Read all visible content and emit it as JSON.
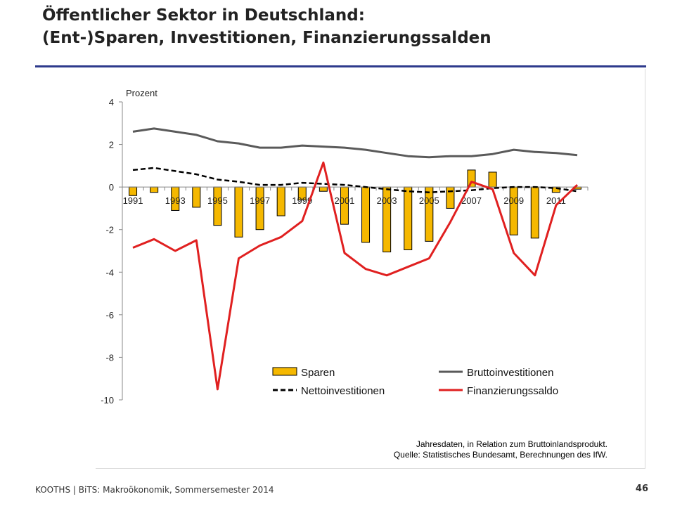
{
  "slide": {
    "title_line1": "Öffentlicher Sektor in Deutschland:",
    "title_line2": "(Ent-)Sparen, Investitionen, Finanzierungssalden",
    "footer_left": "KOOTHS | BiTS: Makroökonomik, Sommersemester 2014",
    "page_number": "46",
    "accent_color": "#2e3a8c"
  },
  "chart_data": {
    "type": "bar",
    "title": "",
    "ylabel": "Prozent",
    "ylim": [
      -10,
      4
    ],
    "yticks": [
      4,
      2,
      0,
      -2,
      -4,
      -6,
      -8,
      -10
    ],
    "grid": false,
    "legend_position": "bottom-right",
    "x": [
      1991,
      1992,
      1993,
      1994,
      1995,
      1996,
      1997,
      1998,
      1999,
      2000,
      2001,
      2002,
      2003,
      2004,
      2005,
      2006,
      2007,
      2008,
      2009,
      2010,
      2011,
      2012
    ],
    "x_tick_labels": [
      "1991",
      "1993",
      "1995",
      "1997",
      "1999",
      "2001",
      "2003",
      "2005",
      "2007",
      "2009",
      "2011"
    ],
    "series": [
      {
        "name": "Sparen",
        "style": "bar",
        "color": "#f5b800",
        "values": [
          -0.4,
          -0.25,
          -1.1,
          -0.95,
          -1.8,
          -2.35,
          -2.0,
          -1.35,
          -0.6,
          -0.2,
          -1.75,
          -2.6,
          -3.05,
          -2.95,
          -2.55,
          -1.0,
          0.8,
          0.7,
          -2.25,
          -2.4,
          -0.25,
          -0.1
        ]
      },
      {
        "name": "Bruttoinvestitionen",
        "style": "line",
        "color": "#5a5a5a",
        "values": [
          2.6,
          2.75,
          2.6,
          2.45,
          2.15,
          2.05,
          1.85,
          1.85,
          1.95,
          1.9,
          1.85,
          1.75,
          1.6,
          1.45,
          1.4,
          1.45,
          1.45,
          1.55,
          1.75,
          1.65,
          1.6,
          1.5
        ]
      },
      {
        "name": "Nettoinvestitionen",
        "style": "dashed",
        "color": "#000000",
        "values": [
          0.8,
          0.9,
          0.75,
          0.6,
          0.35,
          0.25,
          0.1,
          0.1,
          0.2,
          0.15,
          0.1,
          0.0,
          -0.1,
          -0.2,
          -0.25,
          -0.2,
          -0.15,
          -0.05,
          0.0,
          0.0,
          -0.05,
          -0.2
        ]
      },
      {
        "name": "Finanzierungssaldo",
        "style": "line",
        "color": "#e02020",
        "values": [
          -2.85,
          -2.45,
          -3.0,
          -2.5,
          -9.5,
          -3.35,
          -2.75,
          -2.35,
          -1.6,
          1.15,
          -3.1,
          -3.85,
          -4.15,
          -3.75,
          -3.35,
          -1.65,
          0.25,
          -0.1,
          -3.1,
          -4.15,
          -0.85,
          0.1
        ]
      }
    ]
  },
  "source": {
    "line1": "Jahresdaten, in Relation zum Bruttoinlandsprodukt.",
    "line2": "Quelle: Statistisches Bundesamt, Berechnungen des IfW."
  }
}
